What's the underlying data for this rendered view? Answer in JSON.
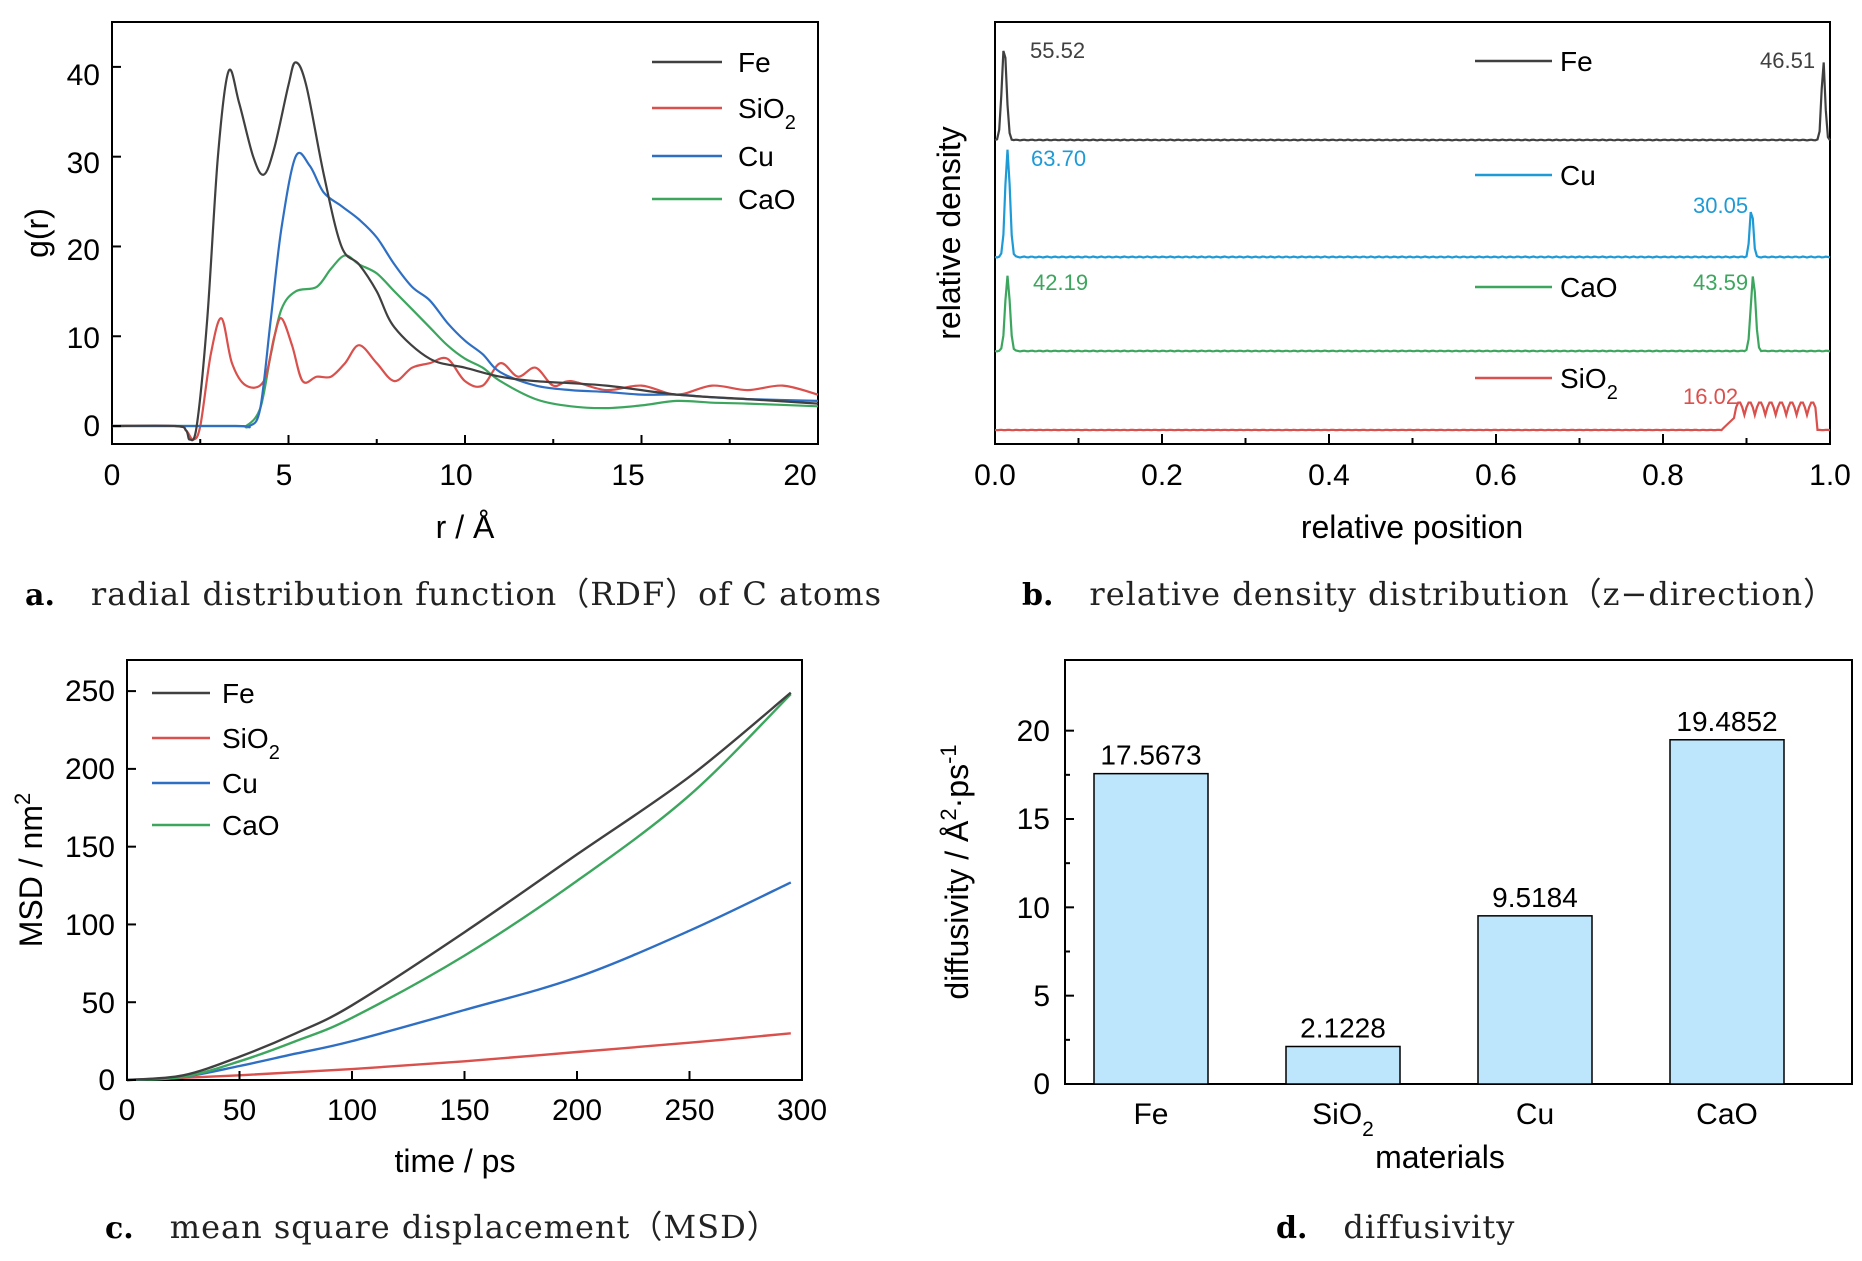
{
  "colors": {
    "Fe": "#404040",
    "SiO2": "#d9504c",
    "Cu": "#2e6fc4",
    "CaO": "#3da65e",
    "Cu_b": "#1e9ad6",
    "bar": "#bde5fb"
  },
  "panels": {
    "a": {
      "letter": "a.",
      "caption": "radial distribution function（RDF）of C atoms"
    },
    "b": {
      "letter": "b.",
      "caption": "relative density distribution（z−direction）"
    },
    "c": {
      "letter": "c.",
      "caption": "mean square displacement（MSD）"
    },
    "d": {
      "letter": "d.",
      "caption": "diffusivity"
    }
  },
  "chart_data": [
    {
      "id": "a",
      "type": "line",
      "xlabel": "r / Å",
      "ylabel": "g(r)",
      "xlim": [
        0,
        20
      ],
      "ylim": [
        -2,
        45
      ],
      "xticks": [
        "0",
        "5",
        "10",
        "15",
        "20"
      ],
      "yticks": [
        "0",
        "10",
        "20",
        "30",
        "40"
      ],
      "legend": [
        "Fe",
        "SiO2",
        "Cu",
        "CaO"
      ],
      "series": [
        {
          "name": "Fe",
          "points": [
            [
              0,
              0
            ],
            [
              1.8,
              0
            ],
            [
              2.1,
              -0.5
            ],
            [
              2.2,
              -1.5
            ],
            [
              2.4,
              0
            ],
            [
              2.7,
              12
            ],
            [
              3.0,
              30
            ],
            [
              3.3,
              39.5
            ],
            [
              3.6,
              36
            ],
            [
              4.0,
              30
            ],
            [
              4.3,
              28
            ],
            [
              4.6,
              31
            ],
            [
              5.0,
              38
            ],
            [
              5.2,
              40.5
            ],
            [
              5.5,
              38
            ],
            [
              6.0,
              28
            ],
            [
              6.5,
              20
            ],
            [
              7.0,
              18
            ],
            [
              7.5,
              15
            ],
            [
              8.0,
              11
            ],
            [
              9.0,
              7.5
            ],
            [
              10,
              6.5
            ],
            [
              11,
              5.5
            ],
            [
              12,
              5
            ],
            [
              14,
              4.5
            ],
            [
              16,
              3.5
            ],
            [
              18,
              3
            ],
            [
              20,
              2.5
            ]
          ]
        },
        {
          "name": "SiO2",
          "points": [
            [
              0,
              0
            ],
            [
              1.8,
              0
            ],
            [
              2.1,
              -0.5
            ],
            [
              2.3,
              -1.5
            ],
            [
              2.5,
              0
            ],
            [
              2.8,
              8
            ],
            [
              3.1,
              12
            ],
            [
              3.4,
              7
            ],
            [
              3.8,
              4.5
            ],
            [
              4.3,
              5
            ],
            [
              4.6,
              10
            ],
            [
              4.8,
              12
            ],
            [
              5.1,
              9
            ],
            [
              5.4,
              5
            ],
            [
              5.8,
              5.5
            ],
            [
              6.2,
              5.5
            ],
            [
              6.6,
              7
            ],
            [
              7.0,
              9
            ],
            [
              7.5,
              7
            ],
            [
              8.0,
              5
            ],
            [
              8.5,
              6.5
            ],
            [
              9.0,
              7
            ],
            [
              9.5,
              7.5
            ],
            [
              10,
              5
            ],
            [
              10.5,
              4.5
            ],
            [
              11,
              7
            ],
            [
              11.5,
              5.5
            ],
            [
              12,
              6.5
            ],
            [
              12.5,
              4.5
            ],
            [
              13,
              5
            ],
            [
              14,
              4
            ],
            [
              15,
              4.5
            ],
            [
              16,
              3.5
            ],
            [
              17,
              4.5
            ],
            [
              18,
              4
            ],
            [
              19,
              4.5
            ],
            [
              20,
              3.5
            ]
          ]
        },
        {
          "name": "Cu",
          "points": [
            [
              0,
              0
            ],
            [
              3.5,
              0
            ],
            [
              3.9,
              0
            ],
            [
              4.2,
              2
            ],
            [
              4.5,
              12
            ],
            [
              4.8,
              22
            ],
            [
              5.2,
              30
            ],
            [
              5.6,
              29
            ],
            [
              6.0,
              26
            ],
            [
              6.5,
              24.5
            ],
            [
              7.0,
              23
            ],
            [
              7.5,
              21
            ],
            [
              8.0,
              18
            ],
            [
              8.5,
              15.5
            ],
            [
              9.0,
              14
            ],
            [
              9.5,
              11.5
            ],
            [
              10,
              9.5
            ],
            [
              10.5,
              8
            ],
            [
              11,
              6
            ],
            [
              12,
              4.5
            ],
            [
              13,
              4
            ],
            [
              14,
              3.8
            ],
            [
              15,
              3.5
            ],
            [
              16,
              3.5
            ],
            [
              17,
              3.2
            ],
            [
              18,
              3
            ],
            [
              20,
              2.8
            ]
          ]
        },
        {
          "name": "CaO",
          "points": [
            [
              0,
              0
            ],
            [
              3.5,
              0
            ],
            [
              3.8,
              0
            ],
            [
              4.2,
              2
            ],
            [
              4.5,
              8
            ],
            [
              4.8,
              13
            ],
            [
              5.2,
              15
            ],
            [
              5.8,
              15.5
            ],
            [
              6.2,
              17.5
            ],
            [
              6.6,
              19
            ],
            [
              7.0,
              18
            ],
            [
              7.5,
              17
            ],
            [
              8.0,
              15
            ],
            [
              8.5,
              13
            ],
            [
              9.0,
              11
            ],
            [
              9.5,
              9
            ],
            [
              10,
              7.5
            ],
            [
              10.5,
              6.5
            ],
            [
              11,
              5
            ],
            [
              12,
              3
            ],
            [
              13,
              2.2
            ],
            [
              14,
              2
            ],
            [
              15,
              2.3
            ],
            [
              16,
              2.8
            ],
            [
              17,
              2.6
            ],
            [
              18,
              2.5
            ],
            [
              20,
              2.2
            ]
          ]
        }
      ]
    },
    {
      "id": "b",
      "type": "line",
      "xlabel": "relative position",
      "ylabel": "relative density",
      "xlim": [
        0,
        1
      ],
      "xticks": [
        "0.0",
        "0.2",
        "0.4",
        "0.6",
        "0.8",
        "1.0"
      ],
      "legend": [
        "Fe",
        "Cu",
        "CaO",
        "SiO2"
      ],
      "annotations": [
        {
          "series": "Fe",
          "x": 0.01,
          "text": "55.52"
        },
        {
          "series": "Fe",
          "x": 0.99,
          "text": "46.51"
        },
        {
          "series": "Cu",
          "x": 0.015,
          "text": "63.70"
        },
        {
          "series": "Cu",
          "x": 0.905,
          "text": "30.05"
        },
        {
          "series": "CaO",
          "x": 0.015,
          "text": "42.19"
        },
        {
          "series": "CaO",
          "x": 0.908,
          "text": "43.59"
        },
        {
          "series": "SiO2",
          "x": 0.88,
          "text": "16.02"
        }
      ]
    },
    {
      "id": "c",
      "type": "line",
      "xlabel": "time / ps",
      "ylabel": "MSD / nm2",
      "xlim": [
        0,
        300
      ],
      "ylim": [
        0,
        270
      ],
      "xticks": [
        "0",
        "50",
        "100",
        "150",
        "200",
        "250",
        "300"
      ],
      "yticks": [
        "0",
        "50",
        "100",
        "150",
        "200",
        "250"
      ],
      "legend": [
        "Fe",
        "SiO2",
        "Cu",
        "CaO"
      ],
      "series": [
        {
          "name": "Fe",
          "points": [
            [
              0,
              0
            ],
            [
              25,
              3
            ],
            [
              50,
              15
            ],
            [
              75,
              30
            ],
            [
              100,
              48
            ],
            [
              150,
              95
            ],
            [
              200,
              145
            ],
            [
              250,
              195
            ],
            [
              295,
              249
            ]
          ]
        },
        {
          "name": "SiO2",
          "points": [
            [
              0,
              0
            ],
            [
              50,
              3
            ],
            [
              100,
              7
            ],
            [
              150,
              12
            ],
            [
              200,
              18
            ],
            [
              250,
              24
            ],
            [
              295,
              30
            ]
          ]
        },
        {
          "name": "Cu",
          "points": [
            [
              0,
              0
            ],
            [
              25,
              2
            ],
            [
              50,
              9
            ],
            [
              75,
              17
            ],
            [
              100,
              25
            ],
            [
              150,
              45
            ],
            [
              200,
              66
            ],
            [
              250,
              96
            ],
            [
              295,
              127
            ]
          ]
        },
        {
          "name": "CaO",
          "points": [
            [
              0,
              0
            ],
            [
              25,
              2
            ],
            [
              50,
              12
            ],
            [
              75,
              25
            ],
            [
              100,
              40
            ],
            [
              150,
              80
            ],
            [
              200,
              128
            ],
            [
              250,
              183
            ],
            [
              295,
              248
            ]
          ]
        }
      ]
    },
    {
      "id": "d",
      "type": "bar",
      "xlabel": "materials",
      "ylabel": "diffusivity / Å2·ps-1",
      "ylim": [
        0,
        24
      ],
      "yticks": [
        "0",
        "5",
        "10",
        "15",
        "20"
      ],
      "categories": [
        "Fe",
        "SiO2",
        "Cu",
        "CaO"
      ],
      "values": [
        17.5673,
        2.1228,
        9.5184,
        19.4852
      ],
      "labels": [
        "17.5673",
        "2.1228",
        "9.5184",
        "19.4852"
      ]
    }
  ]
}
